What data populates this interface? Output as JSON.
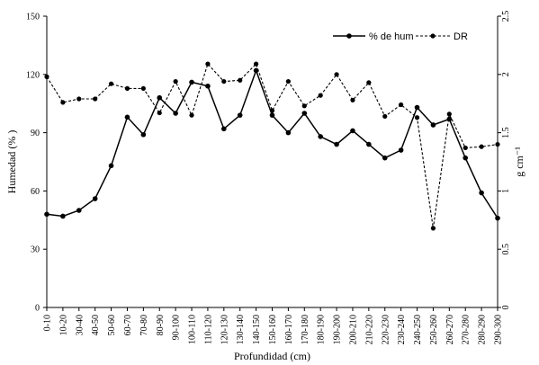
{
  "chart_data": {
    "type": "line",
    "xlabel": "Profundidad (cm)",
    "ylabel_left": "Humedad (% )",
    "ylabel_right": "g cm⁻¹",
    "ylim_left": [
      0,
      150
    ],
    "ylim_right": [
      0,
      2.5
    ],
    "yticks_left": [
      "0",
      "30",
      "60",
      "90",
      "120",
      "150"
    ],
    "yticks_right": [
      "0",
      "0.5",
      "1",
      "1.5",
      "2",
      "2.5"
    ],
    "grid": false,
    "legend_position": "top-right",
    "categories": [
      "0-10",
      "10-20",
      "30-40",
      "40-50",
      "50-60",
      "60-70",
      "70-80",
      "80-90",
      "90-100",
      "100-110",
      "110-120",
      "120-130",
      "130-140",
      "140-150",
      "150-160",
      "160-170",
      "170-180",
      "180-190",
      "190-200",
      "200-210",
      "210-220",
      "220-230",
      "230-240",
      "240-250",
      "250-260",
      "260-270",
      "270-280",
      "280-290",
      "290-300"
    ],
    "series": [
      {
        "name": "% de hum",
        "axis": "left",
        "style": "solid",
        "values": [
          48,
          47,
          50,
          56,
          73,
          98,
          89,
          108,
          100,
          116,
          114,
          92,
          99,
          122,
          99,
          90,
          100,
          88,
          84,
          91,
          84,
          77,
          81,
          103,
          94,
          97,
          77,
          59,
          46
        ]
      },
      {
        "name": "DR",
        "axis": "right",
        "style": "dashed",
        "values": [
          1.98,
          1.76,
          1.79,
          1.79,
          1.92,
          1.88,
          1.88,
          1.67,
          1.94,
          1.65,
          2.09,
          1.94,
          1.95,
          2.09,
          1.69,
          1.94,
          1.73,
          1.82,
          2.0,
          1.78,
          1.93,
          1.64,
          1.74,
          1.63,
          0.68,
          1.66,
          1.37,
          1.38,
          1.4
        ]
      }
    ]
  }
}
